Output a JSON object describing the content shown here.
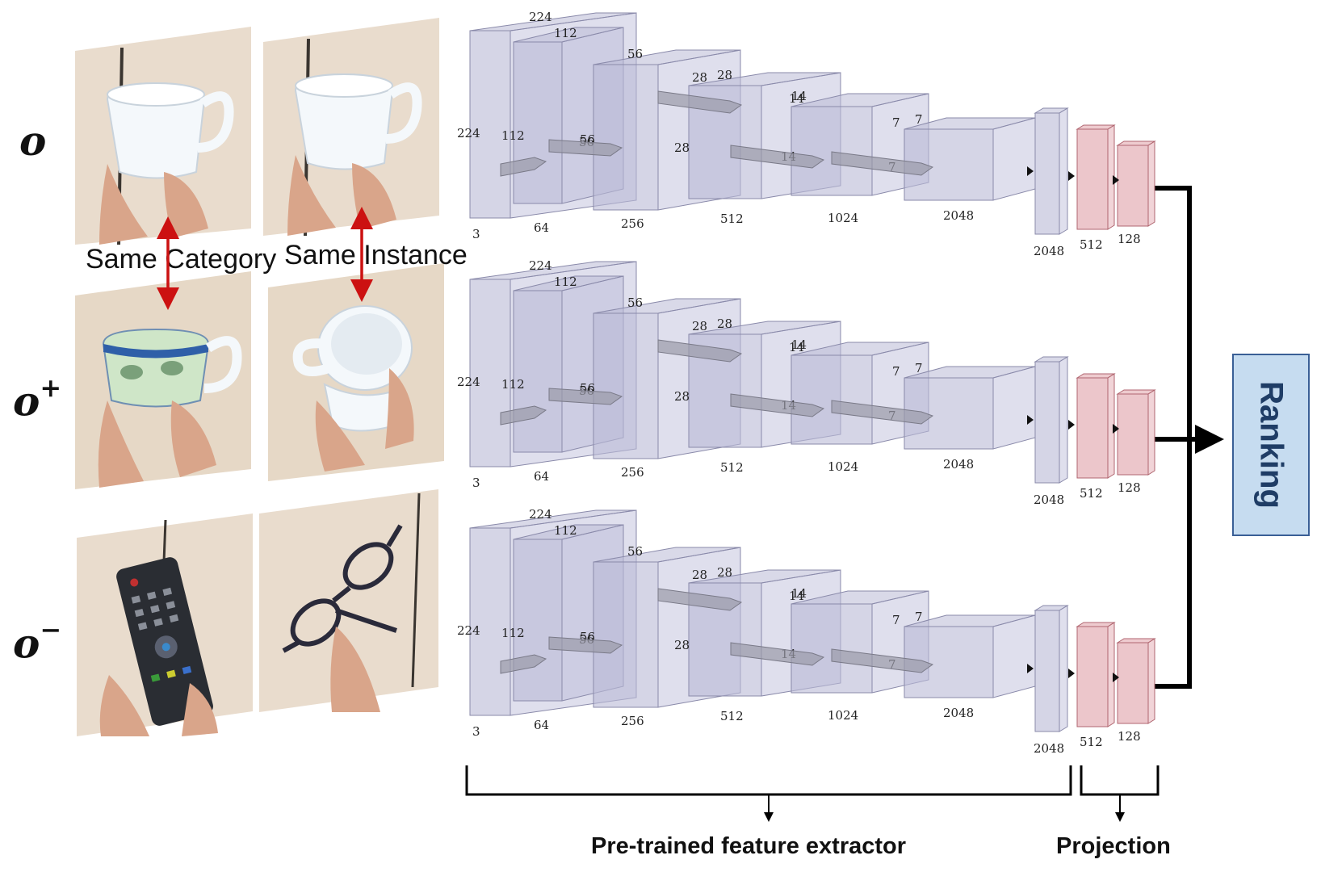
{
  "row_labels": {
    "anchor": "o",
    "positive_sup": "+",
    "negative_sup": "−"
  },
  "captions": {
    "same_category": "Same Category",
    "same_instance": "Same Instance"
  },
  "network": {
    "input": {
      "w": "224",
      "h": "224",
      "c": "3"
    },
    "stages": [
      {
        "dim": "112",
        "ch": "64"
      },
      {
        "dim": "56",
        "ch": "256"
      },
      {
        "dim": "28",
        "ch": "512"
      },
      {
        "dim": "14",
        "ch": "1024"
      },
      {
        "dim": "7",
        "ch": "2048"
      }
    ],
    "pool_dim": "2048",
    "projection": [
      "512",
      "128"
    ]
  },
  "bottom_labels": {
    "extractor": "Pre-trained feature extractor",
    "projection": "Projection"
  },
  "ranking": "Ranking",
  "colors": {
    "block_fill": "#b9b9d6",
    "block_stroke": "#8a8aaa",
    "proj_fill": "#e0a0a8",
    "proj_stroke": "#b06670",
    "arrow": "#cc1111",
    "ranking_bg": "#c6dcf0",
    "ranking_border": "#3a5f96"
  }
}
